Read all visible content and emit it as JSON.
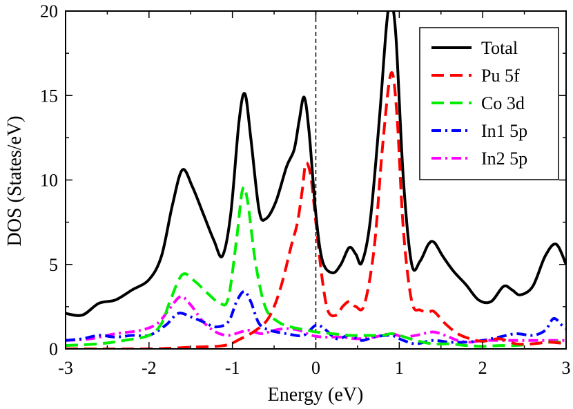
{
  "chart_data": {
    "type": "line",
    "title": "",
    "xlabel": "Energy (eV)",
    "ylabel": "DOS (States/eV)",
    "xlim": [
      -3,
      3
    ],
    "ylim": [
      0,
      20
    ],
    "xticks": [
      -3,
      -2,
      -1,
      0,
      1,
      2,
      3
    ],
    "yticks": [
      0,
      5,
      10,
      15,
      20
    ],
    "x_tick_labels": [
      "-3",
      "-2",
      "-1",
      "0",
      "1",
      "2",
      "3"
    ],
    "y_tick_labels": [
      "0",
      "5",
      "10",
      "15",
      "20"
    ],
    "fermi_level": 0,
    "legend_position": "top-right",
    "series": [
      {
        "name": "Total",
        "color": "#000000",
        "dash": "solid",
        "points": [
          [
            -3.0,
            2.1
          ],
          [
            -2.8,
            2.0
          ],
          [
            -2.6,
            2.7
          ],
          [
            -2.4,
            2.9
          ],
          [
            -2.2,
            3.5
          ],
          [
            -2.0,
            4.1
          ],
          [
            -1.85,
            5.5
          ],
          [
            -1.72,
            8.5
          ],
          [
            -1.6,
            10.6
          ],
          [
            -1.48,
            9.6
          ],
          [
            -1.35,
            8.0
          ],
          [
            -1.22,
            6.4
          ],
          [
            -1.12,
            5.5
          ],
          [
            -1.02,
            8.0
          ],
          [
            -0.92,
            13.5
          ],
          [
            -0.85,
            15.1
          ],
          [
            -0.78,
            12.5
          ],
          [
            -0.68,
            8.2
          ],
          [
            -0.6,
            7.7
          ],
          [
            -0.48,
            8.7
          ],
          [
            -0.35,
            10.8
          ],
          [
            -0.26,
            11.8
          ],
          [
            -0.2,
            13.5
          ],
          [
            -0.14,
            14.9
          ],
          [
            -0.08,
            12.8
          ],
          [
            0.0,
            8.0
          ],
          [
            0.08,
            5.2
          ],
          [
            0.2,
            4.5
          ],
          [
            0.3,
            5.0
          ],
          [
            0.4,
            6.0
          ],
          [
            0.48,
            5.6
          ],
          [
            0.55,
            5.1
          ],
          [
            0.65,
            7.5
          ],
          [
            0.76,
            13.5
          ],
          [
            0.85,
            19.3
          ],
          [
            0.9,
            20.5
          ],
          [
            0.96,
            18.5
          ],
          [
            1.05,
            10.0
          ],
          [
            1.15,
            5.0
          ],
          [
            1.25,
            5.2
          ],
          [
            1.35,
            6.2
          ],
          [
            1.42,
            6.3
          ],
          [
            1.52,
            5.5
          ],
          [
            1.65,
            4.6
          ],
          [
            1.8,
            3.8
          ],
          [
            1.95,
            2.9
          ],
          [
            2.1,
            2.8
          ],
          [
            2.25,
            3.7
          ],
          [
            2.35,
            3.5
          ],
          [
            2.45,
            3.2
          ],
          [
            2.6,
            3.7
          ],
          [
            2.75,
            5.5
          ],
          [
            2.88,
            6.2
          ],
          [
            3.0,
            5.0
          ]
        ]
      },
      {
        "name": "Pu 5f",
        "color": "#ff0000",
        "dash": "long-dash",
        "points": [
          [
            -3.0,
            0.0
          ],
          [
            -2.0,
            0.0
          ],
          [
            -1.5,
            0.1
          ],
          [
            -1.1,
            0.2
          ],
          [
            -0.9,
            0.6
          ],
          [
            -0.75,
            1.0
          ],
          [
            -0.6,
            1.6
          ],
          [
            -0.5,
            2.5
          ],
          [
            -0.4,
            4.0
          ],
          [
            -0.3,
            6.0
          ],
          [
            -0.22,
            7.5
          ],
          [
            -0.16,
            9.5
          ],
          [
            -0.12,
            11.0
          ],
          [
            -0.06,
            10.2
          ],
          [
            0.0,
            7.5
          ],
          [
            0.08,
            4.0
          ],
          [
            0.15,
            2.2
          ],
          [
            0.25,
            2.0
          ],
          [
            0.32,
            2.5
          ],
          [
            0.4,
            2.8
          ],
          [
            0.48,
            2.5
          ],
          [
            0.58,
            2.6
          ],
          [
            0.7,
            6.0
          ],
          [
            0.8,
            12.0
          ],
          [
            0.9,
            16.3
          ],
          [
            0.97,
            14.0
          ],
          [
            1.05,
            7.0
          ],
          [
            1.15,
            2.8
          ],
          [
            1.25,
            2.3
          ],
          [
            1.35,
            2.2
          ],
          [
            1.42,
            2.2
          ],
          [
            1.55,
            1.5
          ],
          [
            1.7,
            0.9
          ],
          [
            1.85,
            0.6
          ],
          [
            2.0,
            0.45
          ],
          [
            2.2,
            0.6
          ],
          [
            2.4,
            0.3
          ],
          [
            2.6,
            0.3
          ],
          [
            2.8,
            0.4
          ],
          [
            3.0,
            0.3
          ]
        ]
      },
      {
        "name": "Co 3d",
        "color": "#00ee00",
        "dash": "long-dash",
        "points": [
          [
            -3.0,
            0.2
          ],
          [
            -2.6,
            0.3
          ],
          [
            -2.3,
            0.5
          ],
          [
            -2.0,
            0.8
          ],
          [
            -1.85,
            1.5
          ],
          [
            -1.75,
            2.8
          ],
          [
            -1.6,
            4.4
          ],
          [
            -1.45,
            4.0
          ],
          [
            -1.3,
            3.3
          ],
          [
            -1.15,
            2.7
          ],
          [
            -1.05,
            3.0
          ],
          [
            -0.95,
            6.5
          ],
          [
            -0.88,
            9.4
          ],
          [
            -0.82,
            8.8
          ],
          [
            -0.72,
            5.0
          ],
          [
            -0.6,
            2.4
          ],
          [
            -0.45,
            1.6
          ],
          [
            -0.3,
            1.3
          ],
          [
            -0.1,
            1.1
          ],
          [
            0.0,
            1.0
          ],
          [
            0.2,
            0.9
          ],
          [
            0.4,
            0.8
          ],
          [
            0.6,
            0.8
          ],
          [
            0.8,
            0.8
          ],
          [
            0.9,
            0.9
          ],
          [
            1.0,
            0.8
          ],
          [
            1.2,
            0.5
          ],
          [
            1.4,
            0.3
          ],
          [
            1.6,
            0.3
          ],
          [
            1.8,
            0.2
          ],
          [
            2.0,
            0.15
          ],
          [
            2.2,
            0.2
          ],
          [
            2.4,
            0.2
          ],
          [
            2.6,
            0.3
          ],
          [
            2.8,
            0.4
          ],
          [
            3.0,
            0.4
          ]
        ]
      },
      {
        "name": "In1 5p",
        "color": "#0000ff",
        "dash": "dash-dot",
        "points": [
          [
            -3.0,
            0.5
          ],
          [
            -2.8,
            0.6
          ],
          [
            -2.6,
            0.8
          ],
          [
            -2.4,
            0.7
          ],
          [
            -2.2,
            0.8
          ],
          [
            -2.0,
            0.8
          ],
          [
            -1.8,
            1.4
          ],
          [
            -1.65,
            2.1
          ],
          [
            -1.5,
            1.9
          ],
          [
            -1.35,
            1.6
          ],
          [
            -1.2,
            1.3
          ],
          [
            -1.05,
            1.6
          ],
          [
            -0.95,
            2.8
          ],
          [
            -0.86,
            3.4
          ],
          [
            -0.78,
            2.8
          ],
          [
            -0.68,
            1.5
          ],
          [
            -0.55,
            1.1
          ],
          [
            -0.35,
            0.9
          ],
          [
            -0.15,
            0.8
          ],
          [
            0.0,
            1.4
          ],
          [
            0.1,
            1.2
          ],
          [
            0.25,
            0.6
          ],
          [
            0.4,
            0.8
          ],
          [
            0.55,
            0.5
          ],
          [
            0.7,
            0.7
          ],
          [
            0.9,
            0.8
          ],
          [
            1.05,
            0.5
          ],
          [
            1.2,
            0.3
          ],
          [
            1.4,
            0.5
          ],
          [
            1.6,
            0.4
          ],
          [
            1.8,
            0.4
          ],
          [
            2.0,
            0.5
          ],
          [
            2.2,
            0.7
          ],
          [
            2.4,
            0.9
          ],
          [
            2.6,
            0.8
          ],
          [
            2.75,
            1.1
          ],
          [
            2.85,
            1.8
          ],
          [
            2.95,
            1.4
          ],
          [
            3.0,
            1.2
          ]
        ]
      },
      {
        "name": "In2 5p",
        "color": "#ff00ff",
        "dash": "dash-dot",
        "points": [
          [
            -3.0,
            0.5
          ],
          [
            -2.7,
            0.6
          ],
          [
            -2.4,
            0.9
          ],
          [
            -2.1,
            1.1
          ],
          [
            -1.9,
            1.5
          ],
          [
            -1.75,
            2.4
          ],
          [
            -1.62,
            3.1
          ],
          [
            -1.5,
            2.6
          ],
          [
            -1.35,
            1.6
          ],
          [
            -1.2,
            1.0
          ],
          [
            -1.05,
            0.8
          ],
          [
            -0.9,
            1.0
          ],
          [
            -0.8,
            1.1
          ],
          [
            -0.65,
            0.9
          ],
          [
            -0.5,
            1.1
          ],
          [
            -0.35,
            1.2
          ],
          [
            -0.2,
            1.1
          ],
          [
            -0.05,
            0.8
          ],
          [
            0.1,
            0.7
          ],
          [
            0.3,
            0.7
          ],
          [
            0.5,
            0.6
          ],
          [
            0.7,
            0.7
          ],
          [
            0.9,
            0.9
          ],
          [
            1.05,
            0.7
          ],
          [
            1.2,
            0.8
          ],
          [
            1.4,
            1.0
          ],
          [
            1.55,
            0.8
          ],
          [
            1.7,
            0.5
          ],
          [
            1.85,
            0.4
          ],
          [
            2.0,
            0.5
          ],
          [
            2.2,
            0.5
          ],
          [
            2.4,
            0.5
          ],
          [
            2.6,
            0.5
          ],
          [
            2.8,
            0.5
          ],
          [
            3.0,
            0.5
          ]
        ]
      }
    ]
  }
}
